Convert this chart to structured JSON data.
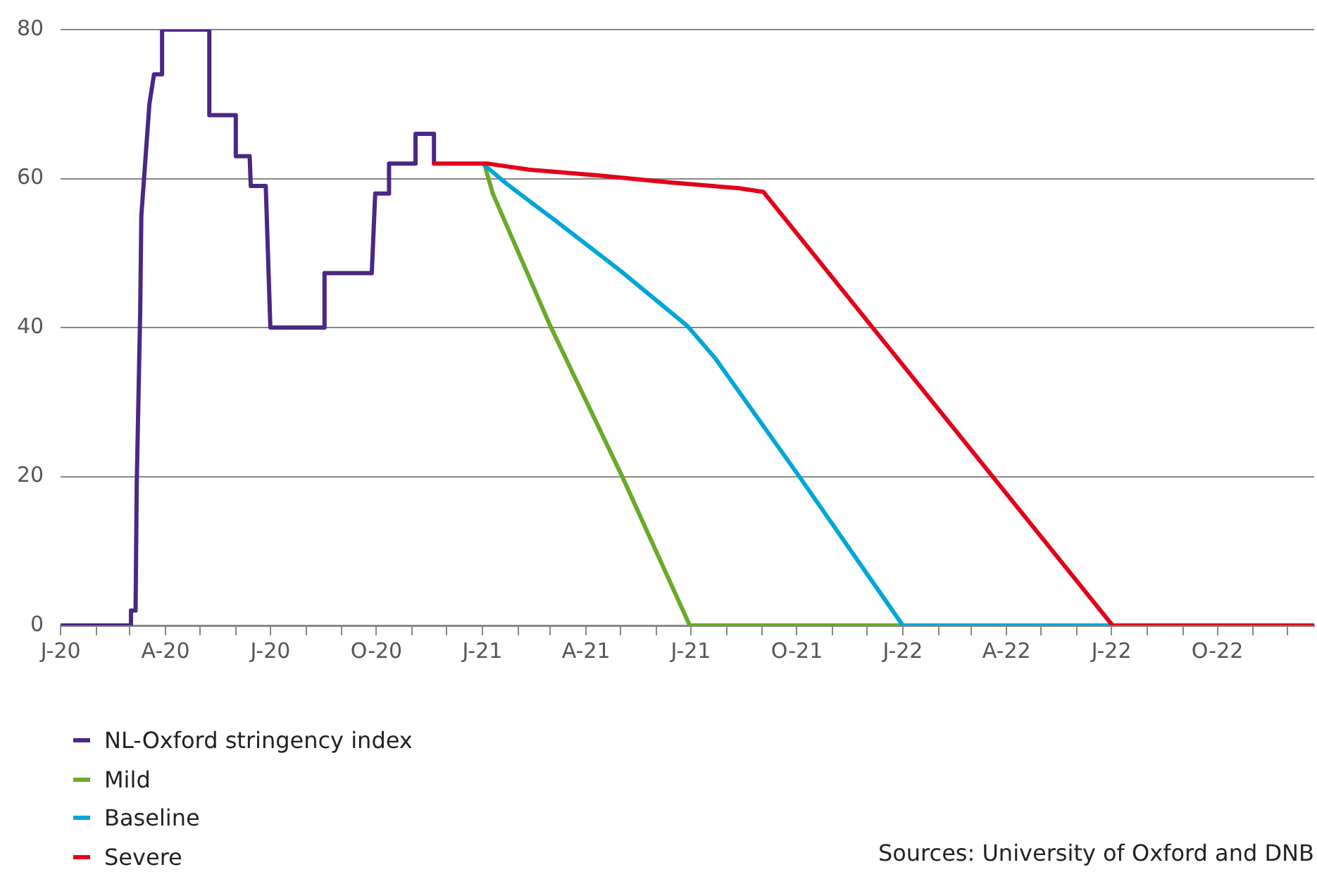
{
  "chart_data": {
    "type": "line",
    "marker": "none",
    "line_style": "solid",
    "grid": "y",
    "legend": "bottom",
    "xlim": [
      "2020-01-01",
      "2022-12-24"
    ],
    "ylim": [
      0,
      80
    ],
    "yticks": [
      0,
      20,
      40,
      60,
      80
    ],
    "xticks": [
      {
        "value": "2020-01",
        "label": "J-20"
      },
      {
        "value": "2020-02",
        "label": null
      },
      {
        "value": "2020-03",
        "label": null
      },
      {
        "value": "2020-04",
        "label": "A-20"
      },
      {
        "value": "2020-05",
        "label": null
      },
      {
        "value": "2020-06",
        "label": null
      },
      {
        "value": "2020-07",
        "label": "J-20"
      },
      {
        "value": "2020-08",
        "label": null
      },
      {
        "value": "2020-09",
        "label": null
      },
      {
        "value": "2020-10",
        "label": "O-20"
      },
      {
        "value": "2020-11",
        "label": null
      },
      {
        "value": "2020-12",
        "label": null
      },
      {
        "value": "2021-01",
        "label": "J-21"
      },
      {
        "value": "2021-02",
        "label": null
      },
      {
        "value": "2021-03",
        "label": null
      },
      {
        "value": "2021-04",
        "label": "A-21"
      },
      {
        "value": "2021-05",
        "label": null
      },
      {
        "value": "2021-06",
        "label": null
      },
      {
        "value": "2021-07",
        "label": "J-21"
      },
      {
        "value": "2021-08",
        "label": null
      },
      {
        "value": "2021-09",
        "label": null
      },
      {
        "value": "2021-10",
        "label": "O-21"
      },
      {
        "value": "2021-11",
        "label": null
      },
      {
        "value": "2021-12",
        "label": null
      },
      {
        "value": "2022-01",
        "label": "J-22"
      },
      {
        "value": "2022-02",
        "label": null
      },
      {
        "value": "2022-03",
        "label": null
      },
      {
        "value": "2022-04",
        "label": "A-22"
      },
      {
        "value": "2022-05",
        "label": null
      },
      {
        "value": "2022-06",
        "label": null
      },
      {
        "value": "2022-07",
        "label": "J-22"
      },
      {
        "value": "2022-08",
        "label": null
      },
      {
        "value": "2022-09",
        "label": null
      },
      {
        "value": "2022-10",
        "label": "O-22"
      },
      {
        "value": "2022-11",
        "label": null
      },
      {
        "value": "2022-12",
        "label": null
      }
    ],
    "series": [
      {
        "name": "NL-Oxford stringency index",
        "color": "#4b2883",
        "x": [
          "2020-01-01",
          "2020-03-02",
          "2020-03-02",
          "2020-03-06",
          "2020-03-07",
          "2020-03-10",
          "2020-03-11",
          "2020-03-18",
          "2020-03-22",
          "2020-03-29",
          "2020-03-29",
          "2020-05-09",
          "2020-05-09",
          "2020-06-01",
          "2020-06-01",
          "2020-06-13",
          "2020-06-14",
          "2020-06-27",
          "2020-07-01",
          "2020-08-17",
          "2020-08-17",
          "2020-09-27",
          "2020-09-30",
          "2020-10-12",
          "2020-10-12",
          "2020-11-04",
          "2020-11-04",
          "2020-11-20",
          "2020-11-20"
        ],
        "values": [
          0,
          0,
          2,
          2,
          19,
          42,
          55,
          70,
          74,
          74,
          80,
          80,
          68.5,
          68.5,
          63,
          63,
          59,
          59,
          40,
          40,
          47.3,
          47.3,
          58,
          58,
          62,
          62,
          66,
          66,
          62
        ]
      },
      {
        "name": "Mild",
        "color": "#6aaa2a",
        "x": [
          "2021-01-03",
          "2021-01-10",
          "2021-03-01",
          "2021-05-03",
          "2021-06-30",
          "2022-01-01"
        ],
        "values": [
          61.8,
          58,
          40.2,
          19.8,
          0,
          0
        ]
      },
      {
        "name": "Baseline",
        "color": "#00a6d6",
        "x": [
          "2021-01-03",
          "2021-01-22",
          "2021-03-05",
          "2021-05-01",
          "2021-06-28",
          "2021-07-22",
          "2021-10-04",
          "2022-01-01",
          "2022-07-02"
        ],
        "values": [
          61.8,
          59.3,
          54.4,
          47.6,
          40.2,
          35.9,
          19.8,
          0,
          0
        ]
      },
      {
        "name": "Severe",
        "color": "#e2001a",
        "x": [
          "2020-11-20",
          "2021-01-06",
          "2021-02-10",
          "2021-04-13",
          "2021-06-11",
          "2021-08-12",
          "2021-09-02",
          "2022-01-19",
          "2022-07-02",
          "2022-12-24"
        ],
        "values": [
          62,
          62,
          61.2,
          60.4,
          59.5,
          58.7,
          58.2,
          31.5,
          0,
          0
        ]
      }
    ],
    "annotations": [
      "Sources: University of Oxford and DNB"
    ]
  }
}
